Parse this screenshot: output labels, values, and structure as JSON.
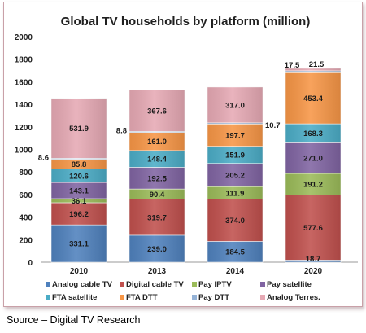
{
  "chart_data": {
    "type": "bar",
    "stacked": true,
    "title": "Global TV households by platform (million)",
    "categories": [
      "2010",
      "2013",
      "2014",
      "2020"
    ],
    "ylim": [
      0,
      2000
    ],
    "yticks": [
      0,
      200,
      400,
      600,
      800,
      1000,
      1200,
      1400,
      1600,
      1800,
      2000
    ],
    "grid": false,
    "legend_position": "bottom",
    "series": [
      {
        "name": "Analog cable TV",
        "color": "#4f81bd",
        "values": [
          331.1,
          239.0,
          184.5,
          18.7
        ]
      },
      {
        "name": "Digital cable TV",
        "color": "#c0504d",
        "values": [
          196.2,
          319.7,
          374.0,
          577.6
        ]
      },
      {
        "name": "Pay IPTV",
        "color": "#9bbb59",
        "values": [
          36.1,
          90.4,
          111.9,
          191.2
        ]
      },
      {
        "name": "Pay satellite",
        "color": "#8064a2",
        "values": [
          143.1,
          192.5,
          205.2,
          271.0
        ]
      },
      {
        "name": "FTA satellite",
        "color": "#4bacc6",
        "values": [
          120.6,
          148.4,
          151.9,
          168.3
        ]
      },
      {
        "name": "FTA DTT",
        "color": "#f79646",
        "values": [
          85.8,
          161.0,
          197.7,
          453.4
        ]
      },
      {
        "name": "Pay DTT",
        "color": "#95b3d7",
        "values": [
          8.6,
          8.8,
          10.7,
          17.5
        ]
      },
      {
        "name": "Analog Terres.",
        "color": "#e6a9b4",
        "values": [
          531.9,
          367.6,
          317.0,
          21.5
        ]
      }
    ]
  },
  "source": "Source – Digital TV Research"
}
